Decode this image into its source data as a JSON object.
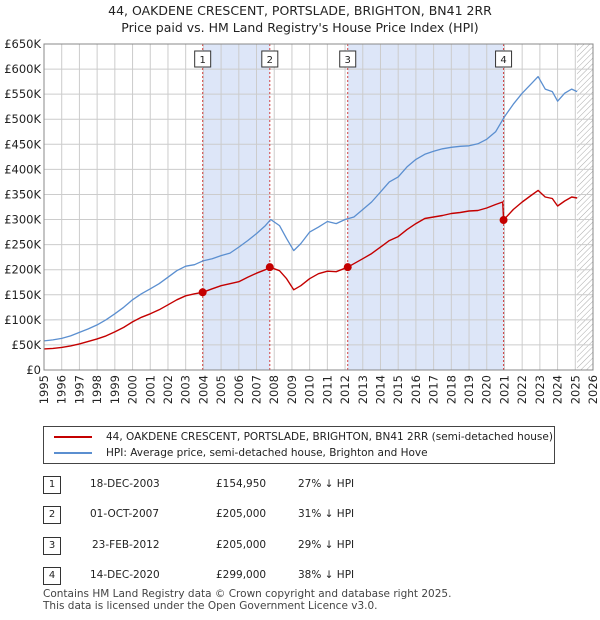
{
  "title": {
    "line1": "44, OAKDENE CRESCENT, PORTSLADE, BRIGHTON, BN41 2RR",
    "line2": "Price paid vs. HM Land Registry's House Price Index (HPI)"
  },
  "colors": {
    "hpi": "#5b8fd0",
    "price": "#c40000",
    "shade": "#dde6f8",
    "grid": "#cccccc",
    "hatch": "#aaaaaa"
  },
  "chart_data": {
    "type": "line",
    "title": "Price paid vs. HM Land Registry's House Price Index (HPI)",
    "xlabel": "",
    "ylabel": "",
    "xlim": [
      1995,
      2026
    ],
    "ylim": [
      0,
      650000
    ],
    "x_ticks": [
      "1995",
      "1996",
      "1997",
      "1998",
      "1999",
      "2000",
      "2001",
      "2002",
      "2003",
      "2004",
      "2005",
      "2006",
      "2007",
      "2008",
      "2009",
      "2010",
      "2011",
      "2012",
      "2013",
      "2014",
      "2015",
      "2016",
      "2017",
      "2018",
      "2019",
      "2020",
      "2021",
      "2022",
      "2023",
      "2024",
      "2025",
      "2026"
    ],
    "y_ticks": [
      {
        "value": 0,
        "label": "£0"
      },
      {
        "value": 50000,
        "label": "£50K"
      },
      {
        "value": 100000,
        "label": "£100K"
      },
      {
        "value": 150000,
        "label": "£150K"
      },
      {
        "value": 200000,
        "label": "£200K"
      },
      {
        "value": 250000,
        "label": "£250K"
      },
      {
        "value": 300000,
        "label": "£300K"
      },
      {
        "value": 350000,
        "label": "£350K"
      },
      {
        "value": 400000,
        "label": "£400K"
      },
      {
        "value": 450000,
        "label": "£450K"
      },
      {
        "value": 500000,
        "label": "£500K"
      },
      {
        "value": 550000,
        "label": "£550K"
      },
      {
        "value": 600000,
        "label": "£600K"
      },
      {
        "value": 650000,
        "label": "£650K"
      }
    ],
    "grid": true,
    "forecast_from": 2025.1,
    "series": [
      {
        "name": "HPI: Average price, semi-detached house, Brighton and Hove",
        "color": "#5b8fd0",
        "x": [
          1995.0,
          1995.5,
          1996.0,
          1996.5,
          1997.0,
          1997.5,
          1998.0,
          1998.5,
          1999.0,
          1999.5,
          2000.0,
          2000.5,
          2001.0,
          2001.5,
          2002.0,
          2002.5,
          2003.0,
          2003.5,
          2004.0,
          2004.5,
          2005.0,
          2005.5,
          2006.0,
          2006.5,
          2007.0,
          2007.5,
          2007.8,
          2008.3,
          2008.7,
          2009.1,
          2009.5,
          2010.0,
          2010.5,
          2011.0,
          2011.5,
          2012.0,
          2012.5,
          2013.0,
          2013.5,
          2014.0,
          2014.5,
          2015.0,
          2015.5,
          2016.0,
          2016.5,
          2017.0,
          2017.5,
          2018.0,
          2018.5,
          2019.0,
          2019.5,
          2020.0,
          2020.5,
          2021.0,
          2021.5,
          2022.0,
          2022.5,
          2022.9,
          2023.3,
          2023.7,
          2024.0,
          2024.4,
          2024.8,
          2025.1
        ],
        "values": [
          58000,
          60000,
          63000,
          68000,
          75000,
          82000,
          90000,
          100000,
          112000,
          125000,
          140000,
          152000,
          162000,
          172000,
          185000,
          198000,
          207000,
          210000,
          218000,
          222000,
          228000,
          233000,
          245000,
          258000,
          272000,
          288000,
          300000,
          288000,
          262000,
          238000,
          252000,
          275000,
          285000,
          296000,
          292000,
          300000,
          305000,
          320000,
          335000,
          355000,
          375000,
          385000,
          405000,
          420000,
          430000,
          436000,
          441000,
          444000,
          446000,
          447000,
          451000,
          460000,
          475000,
          505000,
          530000,
          552000,
          570000,
          585000,
          560000,
          555000,
          536000,
          552000,
          560000,
          555000
        ]
      },
      {
        "name": "44, OAKDENE CRESCENT, PORTSLADE, BRIGHTON, BN41 2RR (semi-detached house)",
        "color": "#c40000",
        "x": [
          1995.0,
          1995.5,
          1996.0,
          1996.5,
          1997.0,
          1997.5,
          1998.0,
          1998.5,
          1999.0,
          1999.5,
          2000.0,
          2000.5,
          2001.0,
          2001.5,
          2002.0,
          2002.5,
          2003.0,
          2003.5,
          2003.96,
          2004.5,
          2005.0,
          2005.5,
          2006.0,
          2006.5,
          2007.0,
          2007.5,
          2007.75,
          2008.3,
          2008.7,
          2009.1,
          2009.5,
          2010.0,
          2010.5,
          2011.0,
          2011.5,
          2012.15,
          2012.5,
          2013.0,
          2013.5,
          2014.0,
          2014.5,
          2015.0,
          2015.5,
          2016.0,
          2016.5,
          2017.0,
          2017.5,
          2018.0,
          2018.5,
          2019.0,
          2019.5,
          2020.0,
          2020.5,
          2020.9,
          2020.95,
          2021.5,
          2022.0,
          2022.5,
          2022.9,
          2023.3,
          2023.7,
          2024.0,
          2024.4,
          2024.8,
          2025.1
        ],
        "values": [
          42000,
          43000,
          45000,
          48000,
          52000,
          57000,
          62000,
          68000,
          76000,
          85000,
          96000,
          105000,
          112000,
          120000,
          130000,
          140000,
          148000,
          152000,
          154950,
          162000,
          168000,
          172000,
          176000,
          185000,
          193000,
          200000,
          205000,
          198000,
          182000,
          160000,
          168000,
          182000,
          192000,
          197000,
          196000,
          205000,
          212000,
          222000,
          232000,
          245000,
          258000,
          266000,
          280000,
          292000,
          302000,
          305000,
          308000,
          312000,
          314000,
          317000,
          318000,
          323000,
          330000,
          335000,
          299000,
          320000,
          335000,
          348000,
          358000,
          345000,
          342000,
          327000,
          337000,
          345000,
          343000
        ]
      }
    ],
    "annotations": [
      {
        "n": "1",
        "x": 2003.96,
        "value": 154950
      },
      {
        "n": "2",
        "x": 2007.75,
        "value": 205000
      },
      {
        "n": "3",
        "x": 2012.15,
        "value": 205000
      },
      {
        "n": "4",
        "x": 2020.95,
        "value": 299000
      }
    ]
  },
  "legend": {
    "price_label": "44, OAKDENE CRESCENT, PORTSLADE, BRIGHTON, BN41 2RR (semi-detached house)",
    "hpi_label": "HPI: Average price, semi-detached house, Brighton and Hove"
  },
  "transactions": [
    {
      "n": "1",
      "date": "18-DEC-2003",
      "price": "£154,950",
      "hpi": "27% ↓ HPI"
    },
    {
      "n": "2",
      "date": "01-OCT-2007",
      "price": "£205,000",
      "hpi": "31% ↓ HPI"
    },
    {
      "n": "3",
      "date": "23-FEB-2012",
      "price": "£205,000",
      "hpi": "29% ↓ HPI"
    },
    {
      "n": "4",
      "date": "14-DEC-2020",
      "price": "£299,000",
      "hpi": "38% ↓ HPI"
    }
  ],
  "footer": {
    "line1": "Contains HM Land Registry data © Crown copyright and database right 2025.",
    "line2": "This data is licensed under the Open Government Licence v3.0."
  }
}
